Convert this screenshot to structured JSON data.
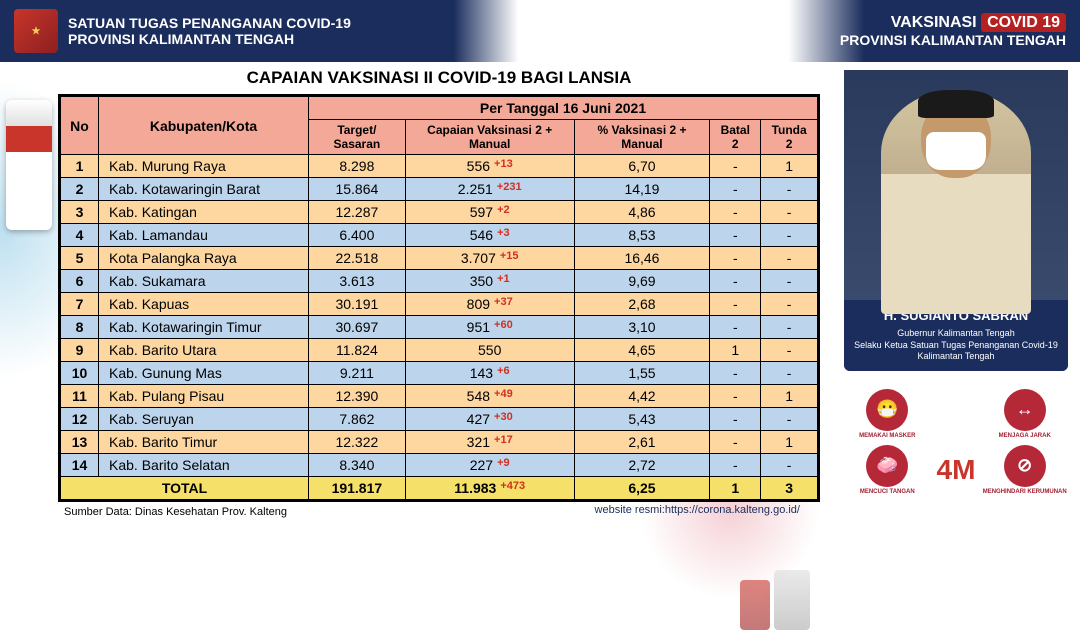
{
  "header": {
    "left1": "SATUAN TUGAS PENANGANAN COVID-19",
    "left2": "PROVINSI KALIMANTAN TENGAH",
    "right1a": "VAKSINASI",
    "right1b": "COVID 19",
    "right2": "PROVINSI KALIMANTAN TENGAH"
  },
  "title": "CAPAIAN VAKSINASI II COVID-19 BAGI LANSIA",
  "date_label": "Per Tanggal",
  "date_value": "16 Juni 2021",
  "columns": {
    "no": "No",
    "kab": "Kabupaten/Kota",
    "target": "Target/ Sasaran",
    "capaian": "Capaian Vaksinasi 2 + Manual",
    "persen": "% Vaksinasi 2 + Manual",
    "batal": "Batal 2",
    "tunda": "Tunda 2"
  },
  "rows": [
    {
      "no": "1",
      "name": "Kab. Murung Raya",
      "target": "8.298",
      "cap": "556",
      "delta": "+13",
      "pct": "6,70",
      "batal": "-",
      "tunda": "1"
    },
    {
      "no": "2",
      "name": "Kab. Kotawaringin Barat",
      "target": "15.864",
      "cap": "2.251",
      "delta": "+231",
      "pct": "14,19",
      "batal": "-",
      "tunda": "-"
    },
    {
      "no": "3",
      "name": "Kab. Katingan",
      "target": "12.287",
      "cap": "597",
      "delta": "+2",
      "pct": "4,86",
      "batal": "-",
      "tunda": "-"
    },
    {
      "no": "4",
      "name": "Kab. Lamandau",
      "target": "6.400",
      "cap": "546",
      "delta": "+3",
      "pct": "8,53",
      "batal": "-",
      "tunda": "-"
    },
    {
      "no": "5",
      "name": "Kota Palangka Raya",
      "target": "22.518",
      "cap": "3.707",
      "delta": "+15",
      "pct": "16,46",
      "batal": "-",
      "tunda": "-"
    },
    {
      "no": "6",
      "name": "Kab. Sukamara",
      "target": "3.613",
      "cap": "350",
      "delta": "+1",
      "pct": "9,69",
      "batal": "-",
      "tunda": "-"
    },
    {
      "no": "7",
      "name": "Kab. Kapuas",
      "target": "30.191",
      "cap": "809",
      "delta": "+37",
      "pct": "2,68",
      "batal": "-",
      "tunda": "-"
    },
    {
      "no": "8",
      "name": "Kab. Kotawaringin Timur",
      "target": "30.697",
      "cap": "951",
      "delta": "+60",
      "pct": "3,10",
      "batal": "-",
      "tunda": "-"
    },
    {
      "no": "9",
      "name": "Kab. Barito Utara",
      "target": "11.824",
      "cap": "550",
      "delta": "",
      "pct": "4,65",
      "batal": "1",
      "tunda": "-"
    },
    {
      "no": "10",
      "name": "Kab. Gunung Mas",
      "target": "9.211",
      "cap": "143",
      "delta": "+6",
      "pct": "1,55",
      "batal": "-",
      "tunda": "-"
    },
    {
      "no": "11",
      "name": "Kab. Pulang Pisau",
      "target": "12.390",
      "cap": "548",
      "delta": "+49",
      "pct": "4,42",
      "batal": "-",
      "tunda": "1"
    },
    {
      "no": "12",
      "name": "Kab. Seruyan",
      "target": "7.862",
      "cap": "427",
      "delta": "+30",
      "pct": "5,43",
      "batal": "-",
      "tunda": "-"
    },
    {
      "no": "13",
      "name": "Kab. Barito Timur",
      "target": "12.322",
      "cap": "321",
      "delta": "+17",
      "pct": "2,61",
      "batal": "-",
      "tunda": "1"
    },
    {
      "no": "14",
      "name": "Kab. Barito Selatan",
      "target": "8.340",
      "cap": "227",
      "delta": "+9",
      "pct": "2,72",
      "batal": "-",
      "tunda": "-"
    }
  ],
  "total": {
    "label": "TOTAL",
    "target": "191.817",
    "cap": "11.983",
    "delta": "+473",
    "pct": "6,25",
    "batal": "1",
    "tunda": "3"
  },
  "source": "Sumber Data: Dinas Kesehatan Prov. Kalteng",
  "website_label": "website resmi:",
  "website_url": "https://corona.kalteng.go.id/",
  "governor": {
    "name": "H. SUGIANTO SABRAN",
    "title1": "Gubernur Kalimantan Tengah",
    "title2": "Selaku Ketua Satuan Tugas Penanganan Covid-19",
    "title3": "Kalimantan Tengah"
  },
  "icons": {
    "m1": "MEMAKAI MASKER",
    "m2": "MENJAGA JARAK",
    "m3": "MENCUCI TANGAN",
    "m4": "MENGHINDARI KERUMUNAN",
    "center": "4M"
  },
  "colors": {
    "navy": "#1a2d5c",
    "salmon": "#f4a898",
    "row_odd": "#fdd6a0",
    "row_even": "#bcd4ec",
    "total": "#f5e06a",
    "delta": "#d13020",
    "red": "#b52020"
  }
}
